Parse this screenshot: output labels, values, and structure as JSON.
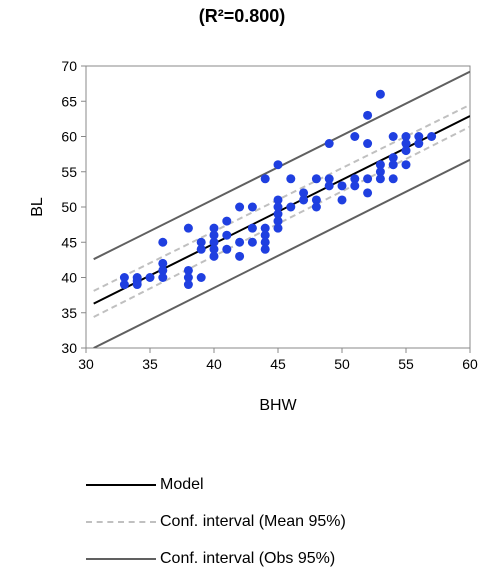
{
  "chart_data": {
    "type": "scatter",
    "title": "(R²=0.800)",
    "xlabel": "BHW",
    "ylabel": "BL",
    "xlim": [
      30,
      60
    ],
    "ylim": [
      30,
      70
    ],
    "x_ticks": [
      "30",
      "35",
      "40",
      "45",
      "50",
      "55",
      "60"
    ],
    "y_ticks": [
      "30",
      "35",
      "40",
      "45",
      "50",
      "55",
      "60",
      "65",
      "70"
    ],
    "grid": false,
    "legend_position": "bottom",
    "points": [
      [
        33,
        40
      ],
      [
        33,
        39
      ],
      [
        34,
        40
      ],
      [
        34,
        39.5
      ],
      [
        34,
        39
      ],
      [
        35,
        40
      ],
      [
        36,
        45
      ],
      [
        36,
        42
      ],
      [
        36,
        41
      ],
      [
        36,
        40
      ],
      [
        38,
        47
      ],
      [
        38,
        41
      ],
      [
        38,
        40
      ],
      [
        38,
        39
      ],
      [
        39,
        45
      ],
      [
        39,
        44
      ],
      [
        39,
        40
      ],
      [
        40,
        47
      ],
      [
        40,
        46
      ],
      [
        40,
        45
      ],
      [
        40,
        44
      ],
      [
        40,
        43
      ],
      [
        41,
        48
      ],
      [
        41,
        44
      ],
      [
        41,
        46
      ],
      [
        42,
        50
      ],
      [
        42,
        45
      ],
      [
        42,
        43
      ],
      [
        43,
        50
      ],
      [
        43,
        47
      ],
      [
        43,
        45
      ],
      [
        44,
        54
      ],
      [
        44,
        47
      ],
      [
        44,
        46
      ],
      [
        44,
        45
      ],
      [
        44,
        44
      ],
      [
        45,
        56
      ],
      [
        45,
        51
      ],
      [
        45,
        50
      ],
      [
        45,
        49
      ],
      [
        45,
        48
      ],
      [
        45,
        47
      ],
      [
        46,
        54
      ],
      [
        46,
        50
      ],
      [
        47,
        52
      ],
      [
        47,
        51
      ],
      [
        48,
        54
      ],
      [
        48,
        51
      ],
      [
        48,
        50
      ],
      [
        49,
        59
      ],
      [
        49,
        54
      ],
      [
        49,
        53
      ],
      [
        50,
        53
      ],
      [
        50,
        51
      ],
      [
        51,
        60
      ],
      [
        51,
        54
      ],
      [
        51,
        53
      ],
      [
        52,
        63
      ],
      [
        52,
        59
      ],
      [
        52,
        54
      ],
      [
        52,
        52
      ],
      [
        53,
        66
      ],
      [
        53,
        56
      ],
      [
        53,
        55
      ],
      [
        53,
        54
      ],
      [
        54,
        60
      ],
      [
        54,
        57
      ],
      [
        54,
        56
      ],
      [
        54,
        54
      ],
      [
        55,
        60
      ],
      [
        55,
        59
      ],
      [
        55,
        58
      ],
      [
        55,
        56
      ],
      [
        56,
        60
      ],
      [
        56,
        59
      ],
      [
        57,
        60
      ]
    ],
    "point_color": "#1f3fe0",
    "series": [
      {
        "name": "Model",
        "color": "#000000",
        "dash": "solid",
        "x": [
          30.6,
          60
        ],
        "y": [
          36.3,
          62.9
        ]
      },
      {
        "name": "Conf. interval (Mean 95%)",
        "color": "#c0c0c0",
        "dash": "dashed",
        "x": [
          30.6,
          60
        ],
        "y": [
          38.1,
          64.5
        ]
      },
      {
        "name": "Conf. interval (Mean 95%)",
        "color": "#c0c0c0",
        "dash": "dashed",
        "x": [
          30.6,
          60
        ],
        "y": [
          34.4,
          61.4
        ]
      },
      {
        "name": "Conf. interval (Obs 95%)",
        "color": "#606060",
        "dash": "solid",
        "x": [
          30.6,
          60
        ],
        "y": [
          42.6,
          69.2
        ]
      },
      {
        "name": "Conf. interval (Obs 95%)",
        "color": "#606060",
        "dash": "solid",
        "x": [
          30.6,
          60
        ],
        "y": [
          30.0,
          56.7
        ]
      }
    ]
  },
  "legend": [
    {
      "label": "Model",
      "color": "#000000",
      "dash": "solid"
    },
    {
      "label": "Conf. interval (Mean 95%)",
      "color": "#c0c0c0",
      "dash": "dashed"
    },
    {
      "label": "Conf. interval (Obs 95%)",
      "color": "#606060",
      "dash": "solid"
    }
  ]
}
